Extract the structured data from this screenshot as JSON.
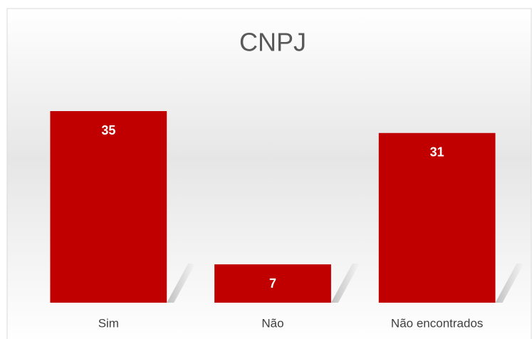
{
  "chart_data": {
    "type": "bar",
    "title": "CNPJ",
    "categories": [
      "Sim",
      "Não",
      "Não encontrados"
    ],
    "values": [
      35,
      7,
      31
    ],
    "color": "#c00000"
  }
}
